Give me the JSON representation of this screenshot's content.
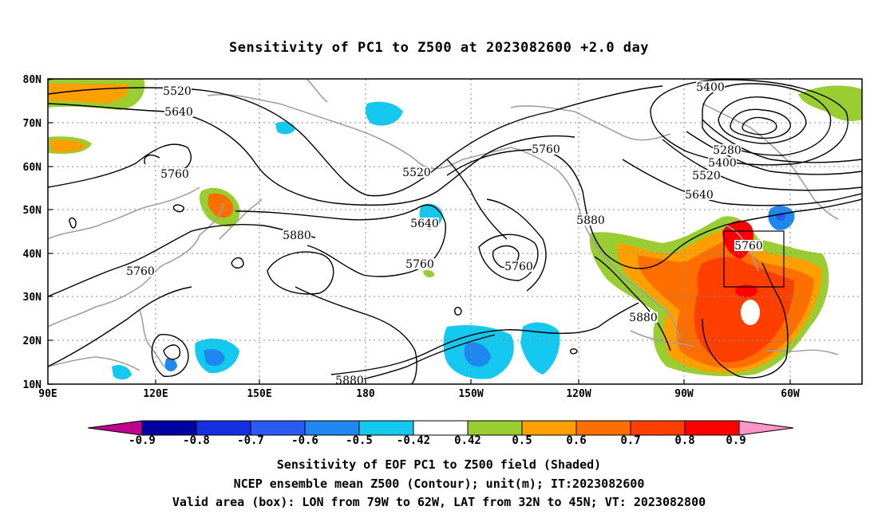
{
  "title": "Sensitivity of PC1 to Z500 at 2023082600 +2.0 day",
  "map": {
    "lon_labels": [
      "90E",
      "120E",
      "150E",
      "180",
      "150W",
      "120W",
      "90W",
      "60W"
    ],
    "lat_labels": [
      "80N",
      "70N",
      "60N",
      "50N",
      "40N",
      "30N",
      "20N",
      "10N"
    ],
    "contour_labels": [
      {
        "text": "5520"
      },
      {
        "text": "5640"
      },
      {
        "text": "5760"
      },
      {
        "text": "5520"
      },
      {
        "text": "5640"
      },
      {
        "text": "5880"
      },
      {
        "text": "5760"
      },
      {
        "text": "5760"
      },
      {
        "text": "5760"
      },
      {
        "text": "5760"
      },
      {
        "text": "5880"
      },
      {
        "text": "5400"
      },
      {
        "text": "5280"
      },
      {
        "text": "5400"
      },
      {
        "text": "5520"
      },
      {
        "text": "5640"
      },
      {
        "text": "5880"
      },
      {
        "text": "5760"
      },
      {
        "text": "5880"
      }
    ],
    "valid_box": {
      "lon_from": "79W",
      "lon_to": "62W",
      "lat_from": "32N",
      "lat_to": "45N"
    }
  },
  "colorbar": {
    "labels": [
      "-0.9",
      "-0.8",
      "-0.7",
      "-0.6",
      "-0.5",
      "-0.42",
      "0.42",
      "0.5",
      "0.6",
      "0.7",
      "0.8",
      "0.9"
    ],
    "colors": [
      "#0000a0",
      "#1530e0",
      "#2a5af0",
      "#1e88f0",
      "#14c8f0",
      "#ffffff",
      "#9acd32",
      "#ff9f00",
      "#ff6f00",
      "#ff3f00",
      "#ff0000"
    ],
    "left_tri_color": "#c0008c",
    "right_tri_color": "#ff96c8"
  },
  "captions": [
    "Sensitivity of EOF PC1 to Z500 field (Shaded)",
    "NCEP ensemble mean Z500 (Contour); unit(m); IT:2023082600",
    "Valid area (box): LON from 79W to 62W, LAT from 32N to 45N; VT: 2023082800"
  ]
}
